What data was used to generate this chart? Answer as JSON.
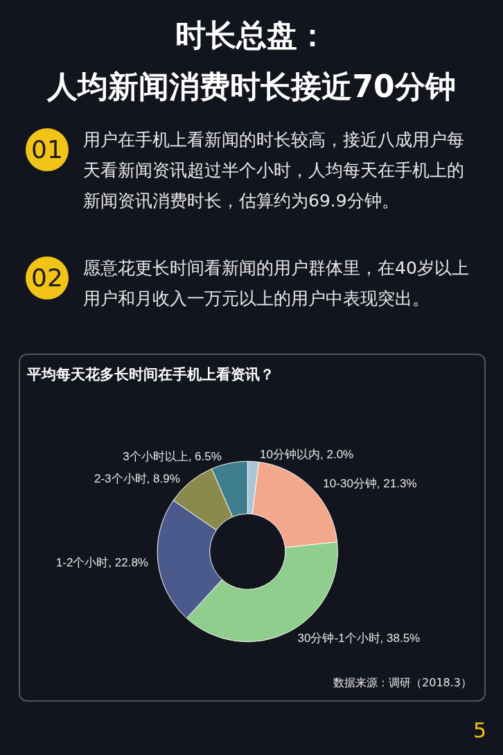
{
  "chart_data": {
    "type": "donut",
    "title": "时长总盘：",
    "subtitle": "人均新闻消费时长接近70分钟",
    "categories": [
      "10分钟以内",
      "10-30分钟",
      "30分钟-1个小时",
      "1-2个小时",
      "2-3个小时",
      "3个小时以上"
    ],
    "values": [
      2.0,
      21.3,
      38.5,
      22.8,
      8.9,
      6.5
    ],
    "value_labels": [
      "2.0%",
      "21.3%",
      "38.5%",
      "22.8%",
      "8.9%",
      "6.5%"
    ],
    "colors": [
      "#a9c6d6",
      "#f3a88e",
      "#8fce8c",
      "#4b5a8c",
      "#8a8a4c",
      "#3f7e8c"
    ],
    "legend": false,
    "annotations": [
      "01",
      "用户在手机上看新闻的时长较高，接近八成用户每天看新闻资讯超过半个小时，人均每天在手机上的新闻资讯消费时长，估算约为69.9分钟。",
      "02",
      "愿意花更长时间看新闻的用户群体里，在40岁以上用户和月收入一万元以上的用户中表现突出。",
      "平均每天花多长时间在手机上看资讯？",
      "数据来源：调研（2018.3）",
      "5"
    ]
  }
}
